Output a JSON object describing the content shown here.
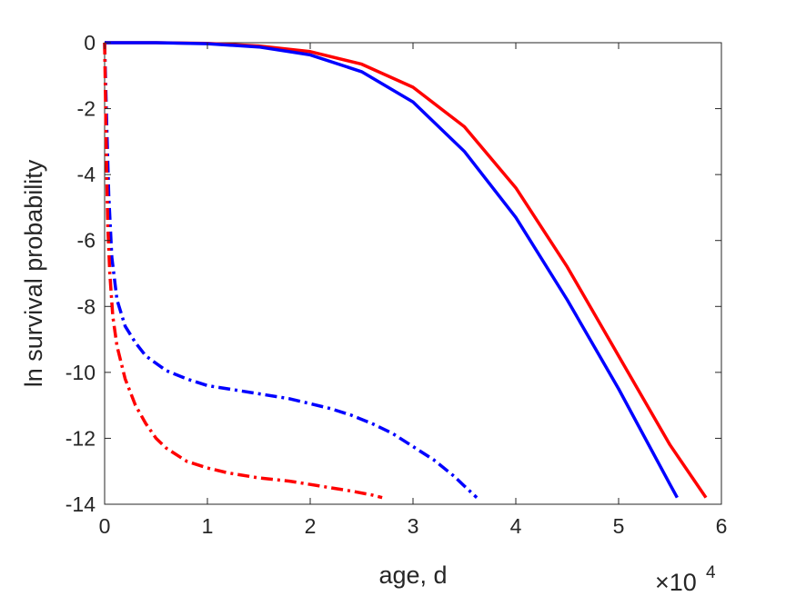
{
  "chart_data": {
    "type": "line",
    "xlabel": "age, d",
    "ylabel": "ln survival probability",
    "x_multiplier_label": "×10",
    "x_multiplier_exponent": "4",
    "xlim": [
      0,
      60000
    ],
    "ylim": [
      -14,
      0
    ],
    "x_ticks": [
      0,
      10000,
      20000,
      30000,
      40000,
      50000,
      60000
    ],
    "x_tick_labels": [
      "0",
      "1",
      "2",
      "3",
      "4",
      "5",
      "6"
    ],
    "y_ticks": [
      0,
      -2,
      -4,
      -6,
      -8,
      -10,
      -12,
      -14
    ],
    "y_tick_labels": [
      "0",
      "-2",
      "-4",
      "-6",
      "-8",
      "-10",
      "-12",
      "-14"
    ],
    "grid": false,
    "series": [
      {
        "color": "#ff0000",
        "style": "solid",
        "points": [
          [
            0,
            0
          ],
          [
            5000,
            0
          ],
          [
            10000,
            -0.02
          ],
          [
            15000,
            -0.1
          ],
          [
            20000,
            -0.27
          ],
          [
            25000,
            -0.65
          ],
          [
            30000,
            -1.35
          ],
          [
            35000,
            -2.55
          ],
          [
            40000,
            -4.4
          ],
          [
            45000,
            -6.8
          ],
          [
            50000,
            -9.5
          ],
          [
            55000,
            -12.2
          ],
          [
            58500,
            -13.8
          ]
        ]
      },
      {
        "color": "#0000ff",
        "style": "solid",
        "points": [
          [
            0,
            0
          ],
          [
            5000,
            0
          ],
          [
            10000,
            -0.03
          ],
          [
            15000,
            -0.13
          ],
          [
            20000,
            -0.37
          ],
          [
            25000,
            -0.88
          ],
          [
            30000,
            -1.8
          ],
          [
            35000,
            -3.3
          ],
          [
            40000,
            -5.3
          ],
          [
            45000,
            -7.8
          ],
          [
            50000,
            -10.5
          ],
          [
            55000,
            -13.4
          ],
          [
            55700,
            -13.8
          ]
        ]
      },
      {
        "color": "#0000ff",
        "style": "dashdot",
        "points": [
          [
            0,
            0
          ],
          [
            200,
            -2.5
          ],
          [
            400,
            -4.6
          ],
          [
            700,
            -6.5
          ],
          [
            1200,
            -7.8
          ],
          [
            2000,
            -8.6
          ],
          [
            3000,
            -9.1
          ],
          [
            4000,
            -9.5
          ],
          [
            6000,
            -9.95
          ],
          [
            8000,
            -10.2
          ],
          [
            10000,
            -10.4
          ],
          [
            12000,
            -10.5
          ],
          [
            15000,
            -10.65
          ],
          [
            18000,
            -10.8
          ],
          [
            20000,
            -10.95
          ],
          [
            22000,
            -11.1
          ],
          [
            24000,
            -11.3
          ],
          [
            26000,
            -11.55
          ],
          [
            28000,
            -11.85
          ],
          [
            30000,
            -12.25
          ],
          [
            32000,
            -12.65
          ],
          [
            34000,
            -13.15
          ],
          [
            35000,
            -13.45
          ],
          [
            36200,
            -13.8
          ]
        ]
      },
      {
        "color": "#ff0000",
        "style": "dashdot",
        "points": [
          [
            0,
            0
          ],
          [
            150,
            -3
          ],
          [
            300,
            -5.5
          ],
          [
            500,
            -7
          ],
          [
            800,
            -8.3
          ],
          [
            1200,
            -9.2
          ],
          [
            2000,
            -10.2
          ],
          [
            3000,
            -11
          ],
          [
            4000,
            -11.55
          ],
          [
            5000,
            -12
          ],
          [
            6000,
            -12.3
          ],
          [
            8000,
            -12.7
          ],
          [
            10000,
            -12.9
          ],
          [
            12000,
            -13.05
          ],
          [
            15000,
            -13.2
          ],
          [
            18000,
            -13.3
          ],
          [
            20000,
            -13.4
          ],
          [
            22000,
            -13.5
          ],
          [
            24000,
            -13.6
          ],
          [
            26000,
            -13.72
          ],
          [
            27000,
            -13.8
          ]
        ]
      }
    ]
  }
}
